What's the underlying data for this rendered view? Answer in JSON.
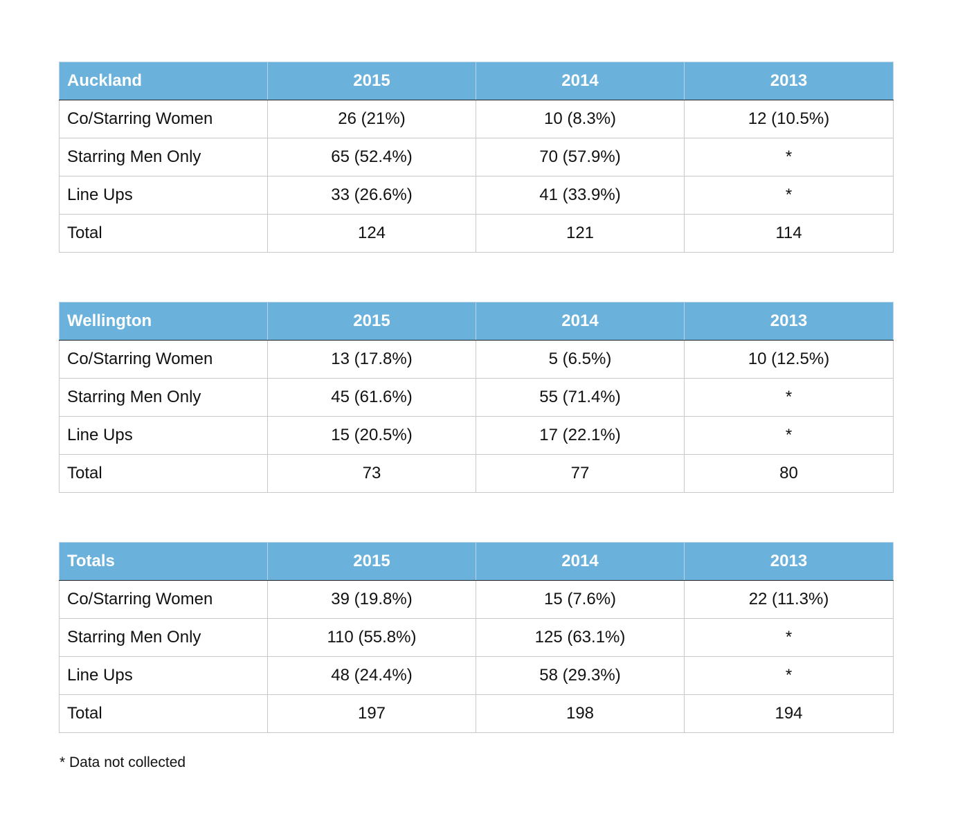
{
  "footnote": "* Data not collected",
  "colors": {
    "header_bg": "#6ab1dc",
    "header_text": "#ffffff",
    "grid": "#c8c8c8"
  },
  "tables": [
    {
      "name": "Auckland",
      "years": [
        "2015",
        "2014",
        "2013"
      ],
      "rows": [
        {
          "label": "Co/Starring Women",
          "values": [
            "26 (21%)",
            "10 (8.3%)",
            "12 (10.5%)"
          ]
        },
        {
          "label": "Starring Men Only",
          "values": [
            "65 (52.4%)",
            "70 (57.9%)",
            "*"
          ]
        },
        {
          "label": "Line Ups",
          "values": [
            "33 (26.6%)",
            "41 (33.9%)",
            "*"
          ]
        },
        {
          "label": "Total",
          "values": [
            "124",
            "121",
            "114"
          ]
        }
      ]
    },
    {
      "name": "Wellington",
      "years": [
        "2015",
        "2014",
        "2013"
      ],
      "rows": [
        {
          "label": "Co/Starring Women",
          "values": [
            "13 (17.8%)",
            "5 (6.5%)",
            "10 (12.5%)"
          ]
        },
        {
          "label": "Starring Men Only",
          "values": [
            "45 (61.6%)",
            "55 (71.4%)",
            "*"
          ]
        },
        {
          "label": "Line Ups",
          "values": [
            "15 (20.5%)",
            "17 (22.1%)",
            "*"
          ]
        },
        {
          "label": "Total",
          "values": [
            "73",
            "77",
            "80"
          ]
        }
      ]
    },
    {
      "name": "Totals",
      "years": [
        "2015",
        "2014",
        "2013"
      ],
      "rows": [
        {
          "label": "Co/Starring Women",
          "values": [
            "39 (19.8%)",
            "15 (7.6%)",
            "22 (11.3%)"
          ]
        },
        {
          "label": "Starring Men Only",
          "values": [
            "110 (55.8%)",
            "125 (63.1%)",
            "*"
          ]
        },
        {
          "label": "Line Ups",
          "values": [
            "48 (24.4%)",
            "58 (29.3%)",
            "*"
          ]
        },
        {
          "label": "Total",
          "values": [
            "197",
            "198",
            "194"
          ]
        }
      ]
    }
  ]
}
